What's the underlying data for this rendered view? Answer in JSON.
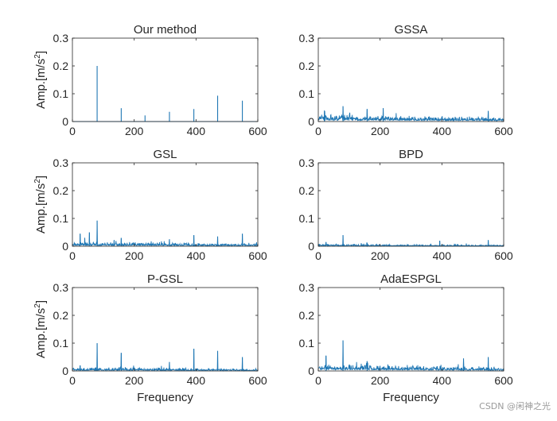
{
  "figure": {
    "watermark": "CSDN @闲神之光"
  },
  "chart_data": [
    {
      "type": "line",
      "title": "Our method",
      "xlabel": "",
      "ylabel": "Amp.[m/s^2]",
      "xlim": [
        0,
        600
      ],
      "ylim": [
        0,
        0.3
      ],
      "xticks": [
        0,
        200,
        400,
        600
      ],
      "yticks": [
        0,
        0.1,
        0.2,
        0.3
      ],
      "grid": false,
      "color": "#1f77b4",
      "peaks": [
        {
          "x": 80,
          "y": 0.2
        },
        {
          "x": 158,
          "y": 0.048
        },
        {
          "x": 235,
          "y": 0.022
        },
        {
          "x": 314,
          "y": 0.035
        },
        {
          "x": 393,
          "y": 0.045
        },
        {
          "x": 470,
          "y": 0.093
        },
        {
          "x": 550,
          "y": 0.075
        }
      ],
      "noise": 0.0
    },
    {
      "type": "line",
      "title": "GSSA",
      "xlabel": "",
      "ylabel": "",
      "xlim": [
        0,
        600
      ],
      "ylim": [
        0,
        0.3
      ],
      "xticks": [
        0,
        200,
        400,
        600
      ],
      "yticks": [
        0,
        0.1,
        0.2,
        0.3
      ],
      "grid": false,
      "color": "#1f77b4",
      "peaks": [
        {
          "x": 20,
          "y": 0.038
        },
        {
          "x": 80,
          "y": 0.055
        },
        {
          "x": 158,
          "y": 0.045
        },
        {
          "x": 210,
          "y": 0.048
        },
        {
          "x": 550,
          "y": 0.038
        }
      ],
      "noise": 0.02
    },
    {
      "type": "line",
      "title": "GSL",
      "xlabel": "",
      "ylabel": "Amp.[m/s^2]",
      "xlim": [
        0,
        600
      ],
      "ylim": [
        0,
        0.3
      ],
      "xticks": [
        0,
        200,
        400,
        600
      ],
      "yticks": [
        0,
        0.1,
        0.2,
        0.3
      ],
      "grid": false,
      "color": "#1f77b4",
      "peaks": [
        {
          "x": 25,
          "y": 0.045
        },
        {
          "x": 55,
          "y": 0.05
        },
        {
          "x": 80,
          "y": 0.092
        },
        {
          "x": 135,
          "y": 0.022
        },
        {
          "x": 158,
          "y": 0.03
        },
        {
          "x": 314,
          "y": 0.025
        },
        {
          "x": 393,
          "y": 0.04
        },
        {
          "x": 470,
          "y": 0.035
        },
        {
          "x": 550,
          "y": 0.045
        }
      ],
      "noise": 0.012
    },
    {
      "type": "line",
      "title": "BPD",
      "xlabel": "",
      "ylabel": "",
      "xlim": [
        0,
        600
      ],
      "ylim": [
        0,
        0.3
      ],
      "xticks": [
        0,
        200,
        400,
        600
      ],
      "yticks": [
        0,
        0.1,
        0.2,
        0.3
      ],
      "grid": false,
      "color": "#1f77b4",
      "peaks": [
        {
          "x": 25,
          "y": 0.015
        },
        {
          "x": 80,
          "y": 0.04
        },
        {
          "x": 158,
          "y": 0.012
        },
        {
          "x": 393,
          "y": 0.02
        },
        {
          "x": 550,
          "y": 0.022
        }
      ],
      "noise": 0.006
    },
    {
      "type": "line",
      "title": "P-GSL",
      "xlabel": "Frequency",
      "ylabel": "Amp.[m/s^2]",
      "xlim": [
        0,
        600
      ],
      "ylim": [
        0,
        0.3
      ],
      "xticks": [
        0,
        200,
        400,
        600
      ],
      "yticks": [
        0,
        0.1,
        0.2,
        0.3
      ],
      "grid": false,
      "color": "#1f77b4",
      "peaks": [
        {
          "x": 25,
          "y": 0.02
        },
        {
          "x": 80,
          "y": 0.1
        },
        {
          "x": 158,
          "y": 0.065
        },
        {
          "x": 314,
          "y": 0.032
        },
        {
          "x": 393,
          "y": 0.08
        },
        {
          "x": 470,
          "y": 0.072
        },
        {
          "x": 550,
          "y": 0.05
        }
      ],
      "noise": 0.01
    },
    {
      "type": "line",
      "title": "AdaESPGL",
      "xlabel": "Frequency",
      "ylabel": "",
      "xlim": [
        0,
        600
      ],
      "ylim": [
        0,
        0.3
      ],
      "xticks": [
        0,
        200,
        400,
        600
      ],
      "yticks": [
        0,
        0.1,
        0.2,
        0.3
      ],
      "grid": false,
      "color": "#1f77b4",
      "peaks": [
        {
          "x": 25,
          "y": 0.055
        },
        {
          "x": 80,
          "y": 0.11
        },
        {
          "x": 158,
          "y": 0.035
        },
        {
          "x": 470,
          "y": 0.045
        },
        {
          "x": 550,
          "y": 0.05
        }
      ],
      "noise": 0.018
    }
  ]
}
